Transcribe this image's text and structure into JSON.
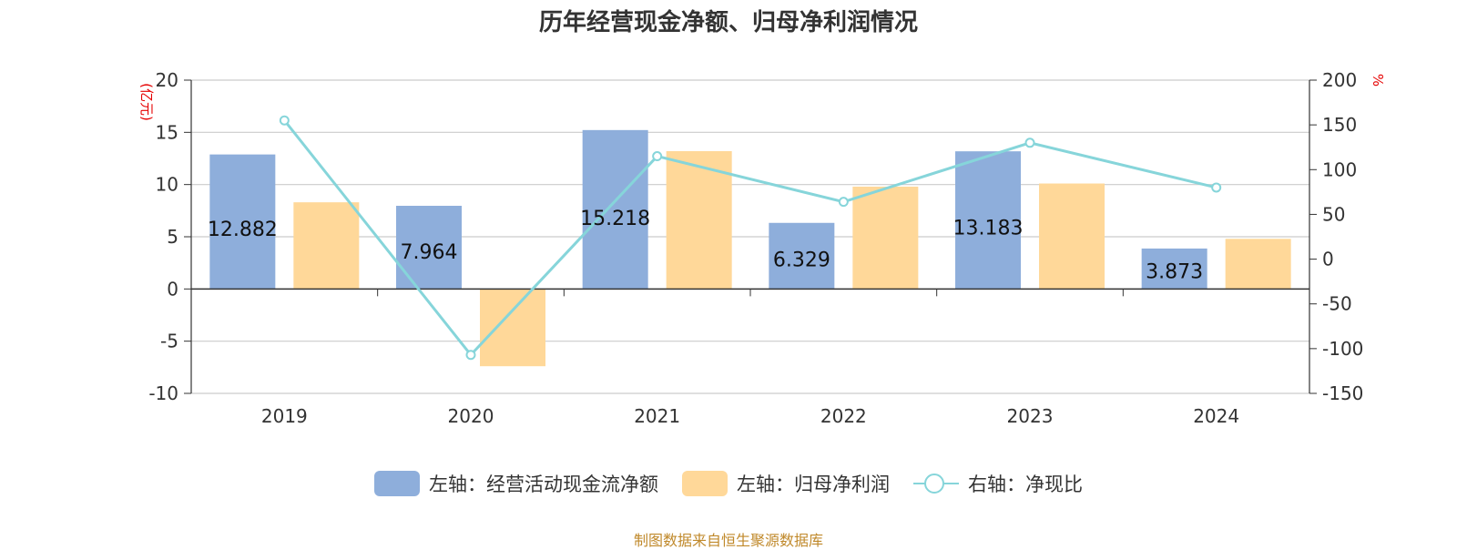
{
  "colors": {
    "operating_cash": "#8eaedb",
    "net_profit": "#ffd899",
    "ratio_line": "#86d5da",
    "unit_text": "#e60000",
    "source_text": "#c0892b"
  },
  "legend": {
    "operating_cash": "左轴：经营活动现金流净额",
    "net_profit": "左轴：归母净利润",
    "ratio": "右轴：净现比"
  },
  "source": "制图数据来自恒生聚源数据库",
  "chart_data": {
    "type": "bar",
    "title": "历年经营现金净额、归母净利润情况",
    "categories": [
      "2019",
      "2020",
      "2021",
      "2022",
      "2023",
      "2024"
    ],
    "y_left": {
      "unit": "(亿元)",
      "ylim": [
        -10,
        20
      ],
      "ticks": [
        20,
        15,
        10,
        5,
        0,
        -5,
        -10
      ]
    },
    "y_right": {
      "unit": "%",
      "ylim": [
        -150,
        200
      ],
      "ticks": [
        200,
        150,
        100,
        50,
        0,
        -50,
        -100,
        -150
      ]
    },
    "grid": true,
    "legend_position": "bottom",
    "series": [
      {
        "name": "左轴：经营活动现金流净额",
        "type": "bar",
        "axis": "left",
        "values": [
          12.882,
          7.964,
          15.218,
          6.329,
          13.183,
          3.873
        ],
        "labels": [
          "12.882",
          "7.964",
          "15.218",
          "6.329",
          "13.183",
          "3.873"
        ]
      },
      {
        "name": "左轴：归母净利润",
        "type": "bar",
        "axis": "left",
        "values": [
          8.3,
          -7.4,
          13.2,
          9.8,
          10.1,
          4.8
        ]
      },
      {
        "name": "右轴：净现比",
        "type": "line",
        "axis": "right",
        "values": [
          155,
          -107,
          115,
          64,
          130,
          80
        ]
      }
    ]
  }
}
